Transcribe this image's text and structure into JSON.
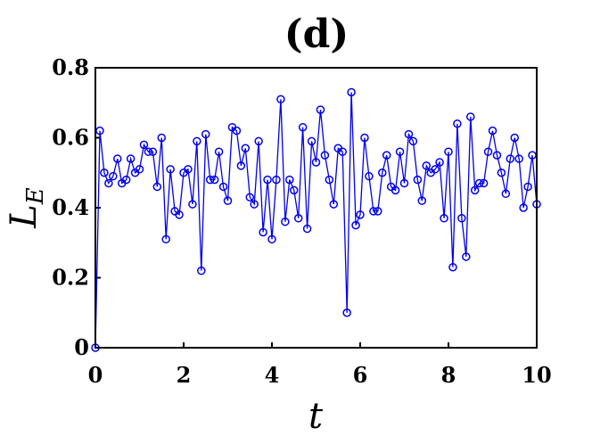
{
  "chart_data": {
    "type": "line",
    "title": "(d)",
    "xlabel": "t",
    "ylabel": {
      "main": "L",
      "sub": "E"
    },
    "xlim": [
      0,
      10
    ],
    "ylim": [
      0,
      0.8
    ],
    "xticks": [
      "0",
      "2",
      "4",
      "6",
      "8",
      "10"
    ],
    "yticks": [
      "0",
      "0.2",
      "0.4",
      "0.6",
      "0.8"
    ],
    "grid": false,
    "color": "#0000ee",
    "marker": "open-circle",
    "x": [
      0,
      0.1,
      0.2,
      0.3,
      0.4,
      0.5,
      0.6,
      0.7,
      0.8,
      0.9,
      1.0,
      1.1,
      1.2,
      1.3,
      1.4,
      1.5,
      1.6,
      1.7,
      1.8,
      1.9,
      2.0,
      2.1,
      2.2,
      2.3,
      2.4,
      2.5,
      2.6,
      2.7,
      2.8,
      2.9,
      3.0,
      3.1,
      3.2,
      3.3,
      3.4,
      3.5,
      3.6,
      3.7,
      3.8,
      3.9,
      4.0,
      4.1,
      4.2,
      4.3,
      4.4,
      4.5,
      4.6,
      4.7,
      4.8,
      4.9,
      5.0,
      5.1,
      5.2,
      5.3,
      5.4,
      5.5,
      5.6,
      5.7,
      5.8,
      5.9,
      6.0,
      6.1,
      6.2,
      6.3,
      6.4,
      6.5,
      6.6,
      6.7,
      6.8,
      6.9,
      7.0,
      7.1,
      7.2,
      7.3,
      7.4,
      7.5,
      7.6,
      7.7,
      7.8,
      7.9,
      8.0,
      8.1,
      8.2,
      8.3,
      8.4,
      8.5,
      8.6,
      8.7,
      8.8,
      8.9,
      9.0,
      9.1,
      9.2,
      9.3,
      9.4,
      9.5,
      9.6,
      9.7,
      9.8,
      9.9,
      10.0
    ],
    "y": [
      0.0,
      0.62,
      0.5,
      0.47,
      0.49,
      0.54,
      0.47,
      0.48,
      0.54,
      0.5,
      0.51,
      0.58,
      0.56,
      0.56,
      0.46,
      0.6,
      0.31,
      0.51,
      0.39,
      0.38,
      0.5,
      0.51,
      0.41,
      0.59,
      0.22,
      0.61,
      0.48,
      0.48,
      0.56,
      0.46,
      0.42,
      0.63,
      0.62,
      0.52,
      0.57,
      0.43,
      0.41,
      0.59,
      0.33,
      0.48,
      0.31,
      0.48,
      0.71,
      0.36,
      0.48,
      0.45,
      0.37,
      0.63,
      0.34,
      0.59,
      0.53,
      0.68,
      0.55,
      0.48,
      0.41,
      0.57,
      0.56,
      0.1,
      0.73,
      0.35,
      0.38,
      0.6,
      0.49,
      0.39,
      0.39,
      0.5,
      0.55,
      0.46,
      0.45,
      0.56,
      0.47,
      0.61,
      0.59,
      0.48,
      0.42,
      0.52,
      0.5,
      0.51,
      0.53,
      0.37,
      0.56,
      0.23,
      0.64,
      0.37,
      0.26,
      0.66,
      0.45,
      0.47,
      0.47,
      0.56,
      0.62,
      0.55,
      0.5,
      0.44,
      0.54,
      0.6,
      0.54,
      0.4,
      0.46,
      0.55,
      0.41
    ]
  }
}
